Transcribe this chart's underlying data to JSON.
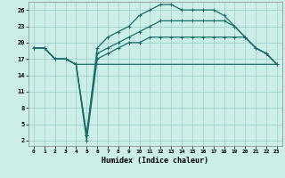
{
  "xlabel": "Humidex (Indice chaleur)",
  "background_color": "#cceee8",
  "grid_color": "#99cccc",
  "line_color": "#1a6e6a",
  "xlim": [
    -0.5,
    23.5
  ],
  "ylim": [
    1,
    27.5
  ],
  "xticks": [
    0,
    1,
    2,
    3,
    4,
    5,
    6,
    7,
    8,
    9,
    10,
    11,
    12,
    13,
    14,
    15,
    16,
    17,
    18,
    19,
    20,
    21,
    22,
    23
  ],
  "yticks": [
    2,
    5,
    8,
    11,
    14,
    17,
    20,
    23,
    26
  ],
  "series": [
    {
      "x": [
        0,
        1,
        2,
        3,
        4,
        5,
        6,
        7,
        8,
        9,
        10,
        11,
        12,
        13,
        14,
        15,
        16,
        17,
        18,
        19,
        20,
        21,
        22,
        23
      ],
      "y": [
        19,
        19,
        17,
        17,
        16,
        16,
        16,
        16,
        16,
        16,
        16,
        16,
        16,
        16,
        16,
        16,
        16,
        16,
        16,
        16,
        16,
        16,
        16,
        16
      ],
      "marker": false,
      "linewidth": 0.9
    },
    {
      "x": [
        0,
        1,
        2,
        3,
        4,
        5,
        6,
        7,
        8,
        9,
        10,
        11,
        12,
        13,
        14,
        15,
        16,
        17,
        18,
        19,
        20,
        21,
        22,
        23
      ],
      "y": [
        19,
        19,
        17,
        17,
        16,
        2,
        17,
        18,
        19,
        20,
        20,
        21,
        21,
        21,
        21,
        21,
        21,
        21,
        21,
        21,
        21,
        19,
        18,
        16
      ],
      "marker": true,
      "linewidth": 0.9
    },
    {
      "x": [
        0,
        1,
        2,
        3,
        4,
        5,
        6,
        7,
        8,
        9,
        10,
        11,
        12,
        13,
        14,
        15,
        16,
        17,
        18,
        19,
        20,
        21,
        22,
        23
      ],
      "y": [
        19,
        19,
        17,
        17,
        16,
        3,
        18,
        19,
        20,
        21,
        22,
        23,
        24,
        24,
        24,
        24,
        24,
        24,
        24,
        23,
        21,
        19,
        18,
        16
      ],
      "marker": true,
      "linewidth": 0.9
    },
    {
      "x": [
        0,
        1,
        2,
        3,
        4,
        5,
        6,
        7,
        8,
        9,
        10,
        11,
        12,
        13,
        14,
        15,
        16,
        17,
        18,
        19,
        20,
        21,
        22,
        23
      ],
      "y": [
        19,
        19,
        17,
        17,
        16,
        3,
        19,
        21,
        22,
        23,
        25,
        26,
        27,
        27,
        26,
        26,
        26,
        26,
        25,
        23,
        21,
        19,
        18,
        16
      ],
      "marker": true,
      "linewidth": 0.9
    }
  ]
}
